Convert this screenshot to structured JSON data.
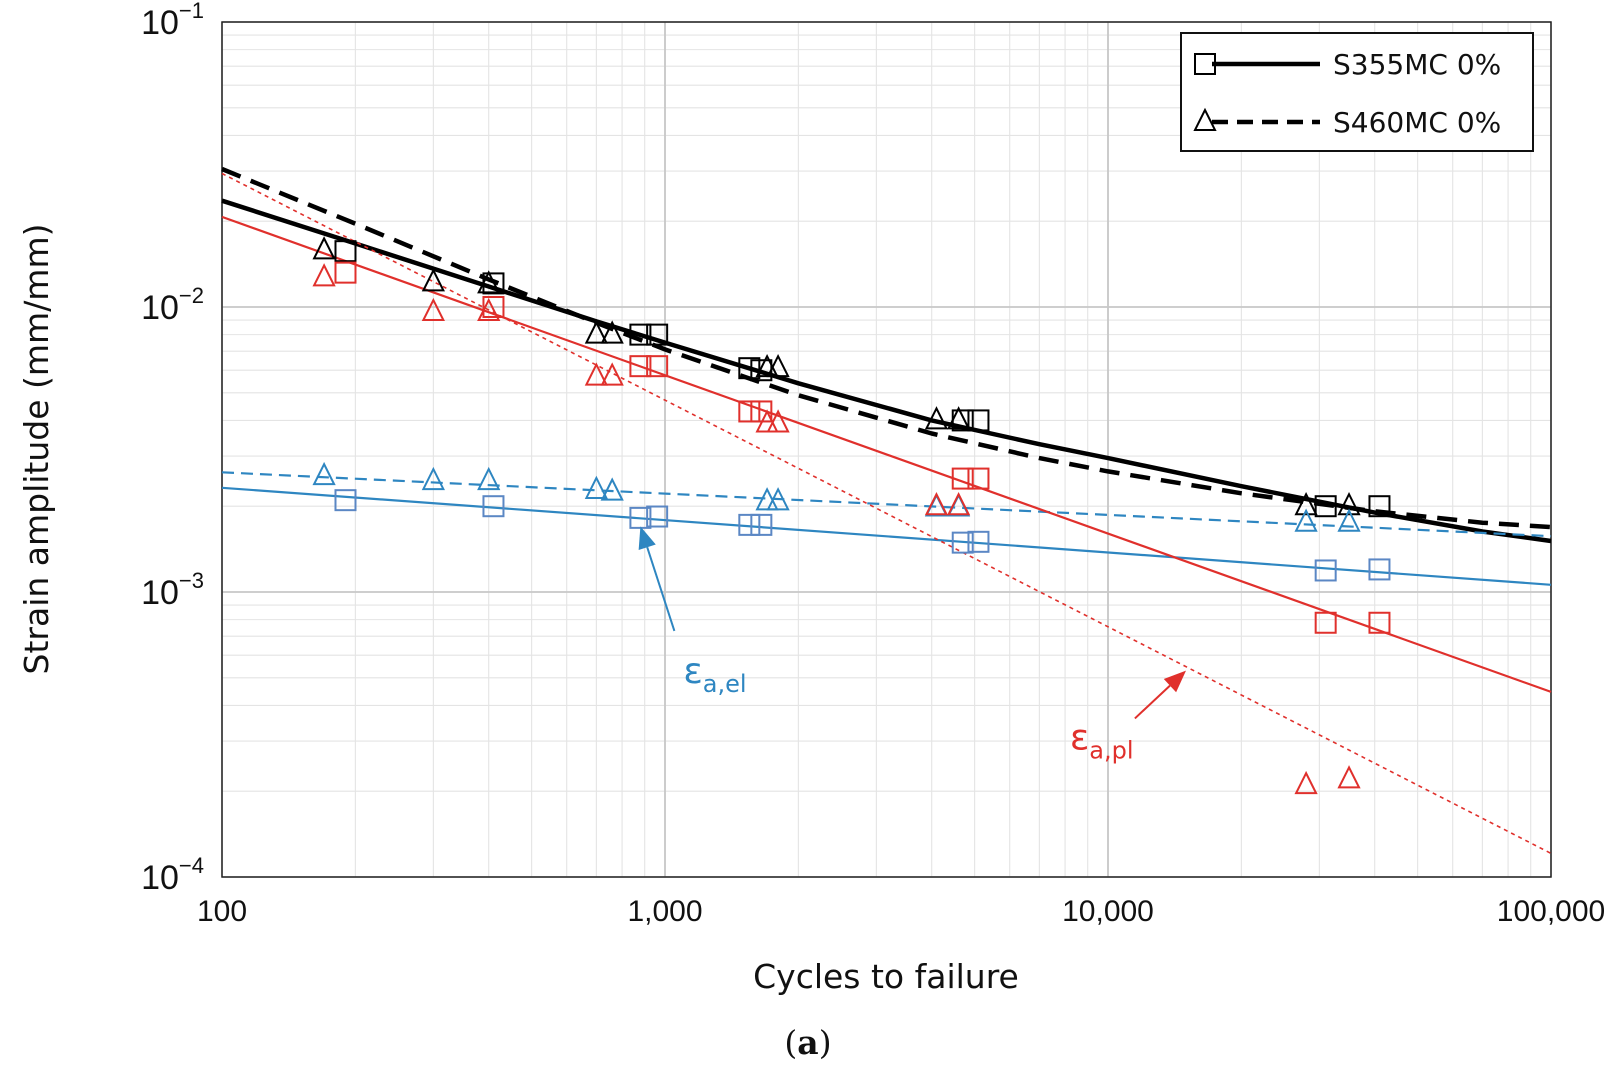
{
  "chart_data": {
    "type": "line",
    "title": "",
    "xlabel": "Cycles to failure",
    "ylabel": "Strain amplitude (mm/mm)",
    "xscale": "log",
    "yscale": "log",
    "xlim": [
      100,
      100000
    ],
    "ylim": [
      0.0001,
      0.1
    ],
    "grid": true,
    "x_tick_labels": [
      "100",
      "1,000",
      "10,000",
      "100,000"
    ],
    "x_tick_values": [
      100,
      1000,
      10000,
      100000
    ],
    "y_ticks": [
      {
        "value": 0.1,
        "base": "10",
        "exp": "−1"
      },
      {
        "value": 0.01,
        "base": "10",
        "exp": "−2"
      },
      {
        "value": 0.001,
        "base": "10",
        "exp": "−3"
      },
      {
        "value": 0.0001,
        "base": "10",
        "exp": "−4"
      }
    ],
    "legend": {
      "position": "top-right",
      "entries": [
        {
          "label": "S355MC 0%",
          "marker": "square",
          "line": "solid",
          "color": "#000000"
        },
        {
          "label": "S460MC 0%",
          "marker": "triangle",
          "line": "dashed",
          "color": "#000000"
        }
      ]
    },
    "colors": {
      "total": "#000000",
      "elastic": "#2e86c1",
      "plastic": "#e0302c",
      "elastic_marker": "#5b87c4"
    },
    "curves": [
      {
        "name": "S355MC 0% total",
        "style": "solid",
        "color": "#000000",
        "width": 4.5,
        "x": [
          100,
          200,
          400,
          700,
          1000,
          2000,
          4000,
          7000,
          10000,
          20000,
          40000,
          70000,
          100000
        ],
        "y": [
          0.0236,
          0.0167,
          0.0118,
          0.0089,
          0.0075,
          0.0054,
          0.004,
          0.0033,
          0.00295,
          0.00235,
          0.0019,
          0.00163,
          0.00151
        ]
      },
      {
        "name": "S460MC 0% total",
        "style": "dashed",
        "color": "#000000",
        "width": 4.5,
        "x": [
          100,
          200,
          400,
          700,
          1000,
          2000,
          4000,
          7000,
          10000,
          20000,
          40000,
          70000,
          100000
        ],
        "y": [
          0.0305,
          0.0196,
          0.0125,
          0.0088,
          0.0071,
          0.0049,
          0.0036,
          0.00295,
          0.00265,
          0.00222,
          0.00192,
          0.00175,
          0.00169
        ]
      },
      {
        "name": "S355MC 0% elastic",
        "style": "solid",
        "color": "#2e86c1",
        "width": 2.2,
        "x": [
          100,
          100000
        ],
        "y": [
          0.00232,
          0.00106
        ]
      },
      {
        "name": "S460MC 0% elastic",
        "style": "dashed",
        "color": "#2e86c1",
        "width": 2.2,
        "x": [
          100,
          100000
        ],
        "y": [
          0.00263,
          0.00157
        ]
      },
      {
        "name": "S355MC 0% plastic",
        "style": "solid",
        "color": "#e0302c",
        "width": 2.2,
        "x": [
          100,
          100000
        ],
        "y": [
          0.0207,
          0.000446
        ]
      },
      {
        "name": "S460MC 0% plastic",
        "style": "dotted",
        "color": "#e0302c",
        "width": 1.6,
        "x": [
          100,
          100000
        ],
        "y": [
          0.0294,
          0.000121
        ]
      }
    ],
    "points": [
      {
        "series": "S355MC 0% total",
        "marker": "square",
        "color": "#000000",
        "x": [
          190,
          410,
          880,
          960,
          1550,
          1650,
          4700,
          5100,
          31000,
          41000
        ],
        "y": [
          0.0157,
          0.0121,
          0.008,
          0.008,
          0.0061,
          0.006,
          0.004,
          0.004,
          0.002,
          0.002
        ]
      },
      {
        "series": "S460MC 0% total",
        "marker": "triangle",
        "color": "#000000",
        "x": [
          170,
          300,
          400,
          700,
          760,
          1700,
          1800,
          4100,
          4600,
          28000,
          35000
        ],
        "y": [
          0.0158,
          0.0122,
          0.012,
          0.008,
          0.008,
          0.0061,
          0.0061,
          0.004,
          0.004,
          0.002,
          0.002
        ]
      },
      {
        "series": "S355MC 0% elastic",
        "marker": "square",
        "color": "#5b87c4",
        "x": [
          190,
          410,
          880,
          960,
          1550,
          1650,
          4700,
          5100,
          31000,
          41000
        ],
        "y": [
          0.0021,
          0.002,
          0.00182,
          0.00184,
          0.00172,
          0.00172,
          0.00149,
          0.0015,
          0.00119,
          0.0012
        ]
      },
      {
        "series": "S460MC 0% elastic",
        "marker": "triangle",
        "color": "#2e86c1",
        "x": [
          170,
          300,
          400,
          700,
          760,
          1700,
          1800,
          4100,
          4600,
          28000,
          35000
        ],
        "y": [
          0.00255,
          0.00245,
          0.00245,
          0.00228,
          0.00225,
          0.00208,
          0.00208,
          0.00198,
          0.00198,
          0.00175,
          0.00175
        ]
      },
      {
        "series": "S355MC 0% plastic",
        "marker": "square",
        "color": "#e0302c",
        "x": [
          190,
          410,
          880,
          960,
          1550,
          1650,
          4700,
          5100,
          31000,
          41000
        ],
        "y": [
          0.0132,
          0.01,
          0.0062,
          0.0062,
          0.0043,
          0.0043,
          0.0025,
          0.0025,
          0.00078,
          0.00078
        ]
      },
      {
        "series": "S460MC 0% plastic",
        "marker": "triangle",
        "color": "#e0302c",
        "x": [
          170,
          300,
          400,
          700,
          760,
          1700,
          1800,
          4100,
          4600,
          28000,
          35000
        ],
        "y": [
          0.0127,
          0.0096,
          0.0096,
          0.0057,
          0.0057,
          0.0039,
          0.0039,
          0.002,
          0.002,
          0.00021,
          0.00022
        ]
      }
    ],
    "annotations": [
      {
        "name": "elastic",
        "symbol": "ε",
        "subscript": "a,el",
        "color": "#2e86c1",
        "label_at": [
          1100,
          0.00048
        ],
        "arrow_from": [
          1050,
          0.00073
        ],
        "arrow_to": [
          880,
          0.0017
        ]
      },
      {
        "name": "plastic",
        "symbol": "ε",
        "subscript": "a,pl",
        "color": "#e0302c",
        "label_at": [
          8200,
          0.00028
        ],
        "arrow_from": [
          11500,
          0.00036
        ],
        "arrow_to": [
          15000,
          0.00053
        ]
      }
    ]
  },
  "caption": {
    "open": "(",
    "letter": "a",
    "close": ")"
  }
}
